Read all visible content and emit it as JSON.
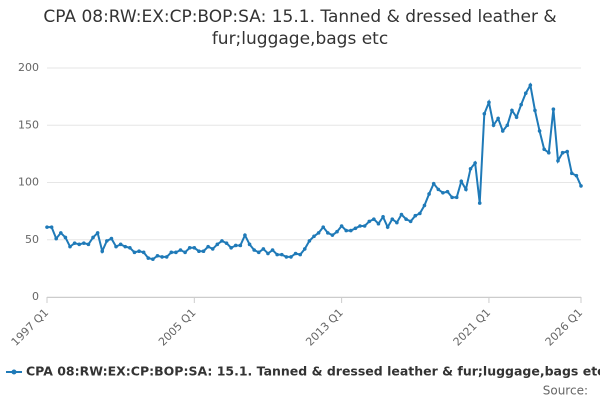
{
  "chart_data": {
    "type": "line",
    "title": "CPA 08:RW:EX:CP:BOP:SA: 15.1. Tanned & dressed leather & fur;luggage,bags etc",
    "source": "Source:",
    "categories": [
      "1997 Q1",
      null,
      null,
      null,
      null,
      null,
      null,
      null,
      null,
      null,
      null,
      null,
      null,
      null,
      null,
      null,
      null,
      null,
      null,
      null,
      null,
      null,
      null,
      null,
      null,
      null,
      null,
      null,
      null,
      null,
      null,
      null,
      "2005 Q1",
      null,
      null,
      null,
      null,
      null,
      null,
      null,
      null,
      null,
      null,
      null,
      null,
      null,
      null,
      null,
      null,
      null,
      null,
      null,
      null,
      null,
      null,
      null,
      null,
      null,
      null,
      null,
      null,
      null,
      null,
      null,
      "2013 Q1",
      null,
      null,
      null,
      null,
      null,
      null,
      null,
      null,
      null,
      null,
      null,
      null,
      null,
      null,
      null,
      null,
      null,
      null,
      null,
      null,
      null,
      null,
      null,
      null,
      null,
      null,
      null,
      null,
      null,
      null,
      null,
      "2021 Q1",
      null,
      null,
      null,
      null,
      null,
      null,
      null,
      null,
      null,
      null,
      null,
      null,
      null,
      null,
      null,
      null,
      null,
      null,
      null,
      "2026 Q1"
    ],
    "series": [
      {
        "name": "CPA 08:RW:EX:CP:BOP:SA: 15.1. Tanned & dressed leather & fur;luggage,bags etc",
        "color": "#1f7ab8",
        "values": [
          61,
          61,
          51,
          56,
          52,
          44,
          47,
          46,
          47,
          46,
          52,
          56,
          40,
          49,
          51,
          44,
          46,
          44,
          43,
          39,
          40,
          39,
          34,
          33,
          36,
          35,
          35,
          39,
          39,
          41,
          39,
          43,
          43,
          40,
          40,
          44,
          42,
          46,
          49,
          47,
          43,
          45,
          45,
          54,
          46,
          41,
          39,
          42,
          38,
          41,
          37,
          37,
          35,
          35,
          38,
          37,
          42,
          49,
          53,
          56,
          61,
          56,
          54,
          57,
          62,
          58,
          58,
          60,
          62,
          62,
          66,
          68,
          64,
          70,
          61,
          68,
          65,
          72,
          68,
          66,
          71,
          73,
          80,
          90,
          99,
          94,
          91,
          92,
          87,
          87,
          101,
          94,
          112,
          117,
          82,
          160,
          170,
          150,
          156,
          145,
          150,
          163,
          157,
          168,
          178,
          185,
          163,
          145,
          129,
          126,
          164,
          119,
          126,
          127,
          108,
          106,
          97
        ]
      }
    ],
    "ylim": [
      0,
      200
    ],
    "yticks": [
      0,
      50,
      100,
      150,
      200
    ],
    "grid": true
  }
}
